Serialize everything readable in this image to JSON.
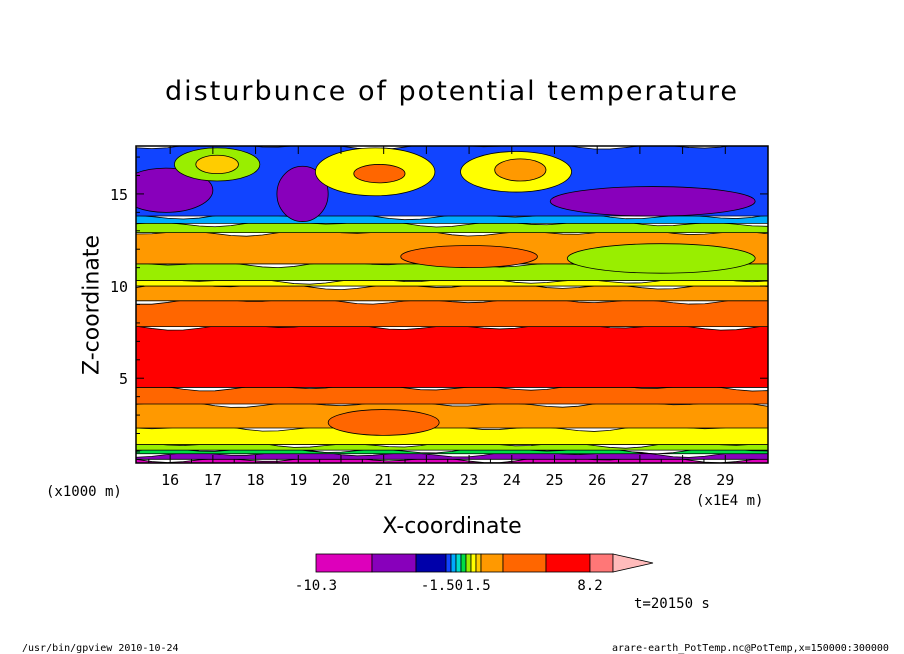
{
  "chart_data": {
    "type": "heatmap",
    "title": "disturbunce of potential temperature",
    "xlabel": "X-coordinate",
    "ylabel": "Z-coordinate",
    "x_scale_note": "(x1E4 m)",
    "y_scale_note": "(x1000 m)",
    "xlim": [
      15.2,
      30.0
    ],
    "ylim": [
      0.4,
      17.6
    ],
    "x_ticks": [
      16,
      17,
      18,
      19,
      20,
      21,
      22,
      23,
      24,
      25,
      26,
      27,
      28,
      29
    ],
    "y_ticks": [
      5,
      10,
      15
    ],
    "grid": false,
    "layers": [
      {
        "z0": 0.4,
        "z1": 0.6,
        "level": -11
      },
      {
        "z0": 0.6,
        "z1": 0.9,
        "level": -3
      },
      {
        "z0": 0.9,
        "z1": 1.1,
        "level": 0.5
      },
      {
        "z0": 1.1,
        "z1": 1.4,
        "level": 1.1
      },
      {
        "z0": 1.4,
        "z1": 2.3,
        "level": 1.3
      },
      {
        "z0": 2.3,
        "z1": 3.6,
        "level": 2.5
      },
      {
        "z0": 3.6,
        "z1": 4.5,
        "level": 3.5
      },
      {
        "z0": 4.5,
        "z1": 7.8,
        "level": 6.5
      },
      {
        "z0": 7.8,
        "z1": 9.2,
        "level": 3.5
      },
      {
        "z0": 9.2,
        "z1": 10.0,
        "level": 2.5
      },
      {
        "z0": 10.0,
        "z1": 10.3,
        "level": 1.3
      },
      {
        "z0": 10.3,
        "z1": 11.2,
        "level": 1.1
      },
      {
        "z0": 11.2,
        "z1": 12.9,
        "level": 2.5
      },
      {
        "z0": 12.9,
        "z1": 13.4,
        "level": 0.9
      },
      {
        "z0": 13.4,
        "z1": 13.8,
        "level": -0.5
      },
      {
        "z0": 13.8,
        "z1": 17.6,
        "level": -1.0
      }
    ],
    "blobs": [
      {
        "x": 15.9,
        "z": 15.2,
        "rx": 1.1,
        "rz": 1.2,
        "level": -3.0
      },
      {
        "x": 19.1,
        "z": 15.0,
        "rx": 0.6,
        "rz": 1.5,
        "level": -3.0
      },
      {
        "x": 27.3,
        "z": 14.6,
        "rx": 2.4,
        "rz": 0.8,
        "level": -3.0
      },
      {
        "x": 17.1,
        "z": 16.6,
        "rx": 1.0,
        "rz": 0.9,
        "level": 1.0
      },
      {
        "x": 20.8,
        "z": 16.2,
        "rx": 1.4,
        "rz": 1.3,
        "level": 1.3
      },
      {
        "x": 24.1,
        "z": 16.2,
        "rx": 1.3,
        "rz": 1.1,
        "level": 1.3
      },
      {
        "x": 17.1,
        "z": 16.6,
        "rx": 0.5,
        "rz": 0.5,
        "level": 1.4
      },
      {
        "x": 20.9,
        "z": 16.1,
        "rx": 0.6,
        "rz": 0.5,
        "level": 3.5
      },
      {
        "x": 24.2,
        "z": 16.3,
        "rx": 0.6,
        "rz": 0.6,
        "level": 2.5
      },
      {
        "x": 21.0,
        "z": 2.6,
        "rx": 1.3,
        "rz": 0.7,
        "level": 3.5
      },
      {
        "x": 23.0,
        "z": 11.6,
        "rx": 1.6,
        "rz": 0.6,
        "level": 3.5
      },
      {
        "x": 27.5,
        "z": 11.5,
        "rx": 2.2,
        "rz": 0.8,
        "level": 1.1
      }
    ],
    "colorbar": {
      "bins": [
        "#dd00bb",
        "#8800bb",
        "#0000aa",
        "#1144ff",
        "#00aaff",
        "#00ddcc",
        "#00dd44",
        "#99ee00",
        "#ffff00",
        "#ffcc00",
        "#ff9900",
        "#ff6600",
        "#ff0000",
        "#ff7777"
      ],
      "extension_color": "#ffbbbb",
      "labels": [
        "-10.3",
        "-1.50",
        "1.5",
        "8.2"
      ]
    }
  },
  "annotations": {
    "time": "t=20150 s",
    "footer_left": "/usr/bin/gpview  2010-10-24",
    "footer_right": "arare-earth_PotTemp.nc@PotTemp,x=150000:300000"
  }
}
